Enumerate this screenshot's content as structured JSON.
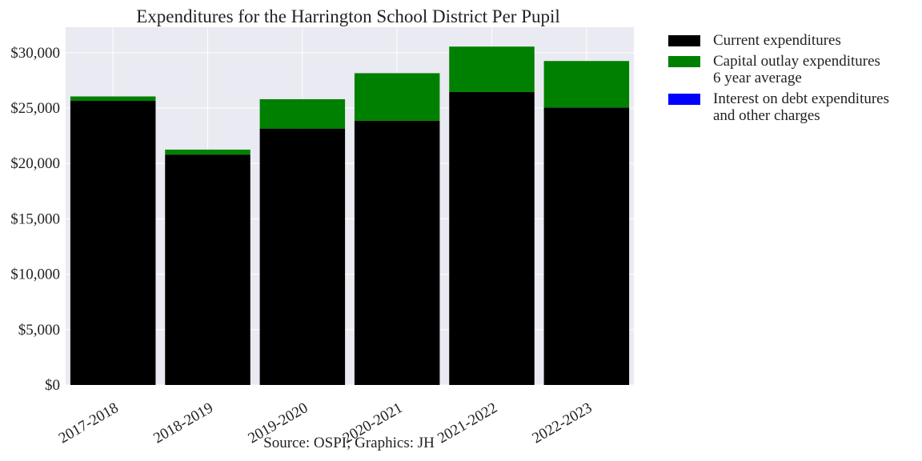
{
  "chart_data": {
    "type": "bar",
    "stacked": true,
    "title": "Expenditures for the Harrington School District Per Pupil",
    "xlabel": "",
    "ylabel": "",
    "categories": [
      "2017-2018",
      "2018-2019",
      "2019-2020",
      "2020-2021",
      "2021-2022",
      "2022-2023"
    ],
    "series": [
      {
        "name": "Current expenditures",
        "color": "#000000",
        "values": [
          25650,
          20800,
          23150,
          23850,
          26450,
          25050
        ]
      },
      {
        "name": "Capital outlay expenditures",
        "name_line2": "6 year average",
        "color": "#008000",
        "values": [
          400,
          450,
          2650,
          4300,
          4100,
          4200
        ]
      },
      {
        "name": "Interest on debt expenditures",
        "name_line2": "and other charges",
        "color": "#0000ff",
        "values": [
          0,
          0,
          0,
          0,
          0,
          0
        ]
      }
    ],
    "ylim": [
      0,
      32300
    ],
    "yticks": [
      0,
      5000,
      10000,
      15000,
      20000,
      25000,
      30000
    ],
    "ytick_labels": [
      "$0",
      "$5,000",
      "$10,000",
      "$15,000",
      "$20,000",
      "$25,000",
      "$30,000"
    ],
    "grid": true,
    "legend_placement": "outside-right",
    "background_color": "#eaeaf2"
  },
  "source_note": "Source: OSPI; Graphics: JH"
}
